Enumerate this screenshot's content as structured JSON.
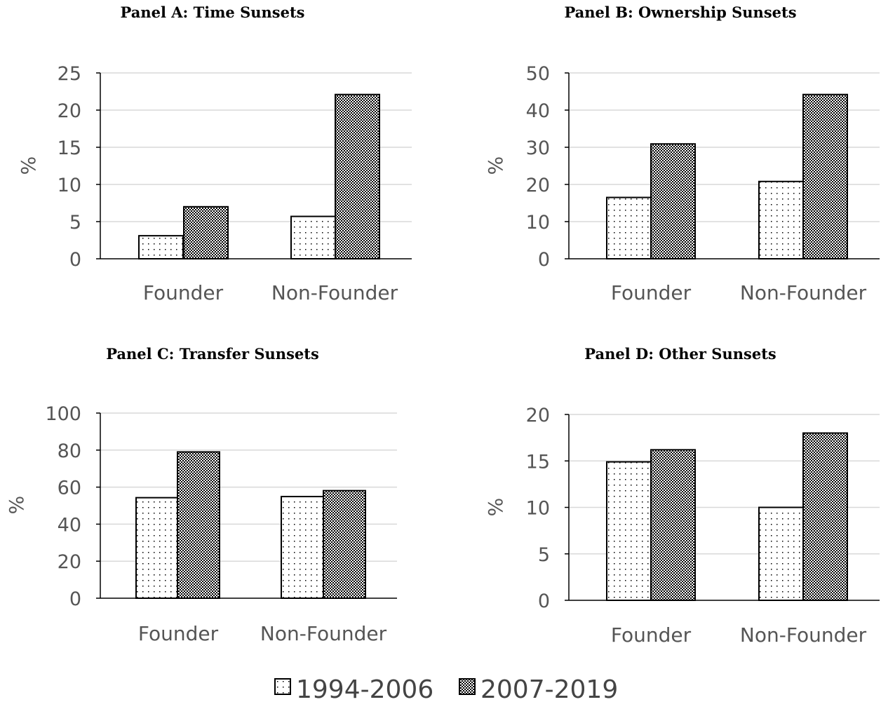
{
  "chart_data": [
    {
      "type": "bar",
      "title": "Panel A: Time Sunsets",
      "ylabel": "%",
      "categories": [
        "Founder",
        "Non-Founder"
      ],
      "ylim": [
        0,
        25
      ],
      "yticks": [
        0,
        5,
        10,
        15,
        20,
        25
      ],
      "series": [
        {
          "name": "1994-2006",
          "values": [
            3.1,
            5.7
          ]
        },
        {
          "name": "2007-2019",
          "values": [
            7.0,
            22.1
          ]
        }
      ]
    },
    {
      "type": "bar",
      "title": "Panel B: Ownership Sunsets",
      "ylabel": "%",
      "categories": [
        "Founder",
        "Non-Founder"
      ],
      "ylim": [
        0,
        50
      ],
      "yticks": [
        0,
        10,
        20,
        30,
        40,
        50
      ],
      "series": [
        {
          "name": "1994-2006",
          "values": [
            16.5,
            20.8
          ]
        },
        {
          "name": "2007-2019",
          "values": [
            30.9,
            44.2
          ]
        }
      ]
    },
    {
      "type": "bar",
      "title": "Panel C: Transfer Sunsets",
      "ylabel": "%",
      "categories": [
        "Founder",
        "Non-Founder"
      ],
      "ylim": [
        0,
        100
      ],
      "yticks": [
        0,
        20,
        40,
        60,
        80,
        100
      ],
      "series": [
        {
          "name": "1994-2006",
          "values": [
            54.3,
            54.9
          ]
        },
        {
          "name": "2007-2019",
          "values": [
            79.0,
            58.1
          ]
        }
      ]
    },
    {
      "type": "bar",
      "title": "Panel D: Other Sunsets",
      "ylabel": "%",
      "categories": [
        "Founder",
        "Non-Founder"
      ],
      "ylim": [
        0,
        20
      ],
      "yticks": [
        0,
        5,
        10,
        15,
        20
      ],
      "series": [
        {
          "name": "1994-2006",
          "values": [
            14.9,
            10.0
          ]
        },
        {
          "name": "2007-2019",
          "values": [
            16.2,
            18.0
          ]
        }
      ]
    }
  ],
  "legend": [
    {
      "label": "1994-2006",
      "pattern": "dots"
    },
    {
      "label": "2007-2019",
      "pattern": "checker"
    }
  ],
  "colors": {
    "axis": "#000000",
    "grid": "#d9d9d9",
    "text": "#555555"
  }
}
